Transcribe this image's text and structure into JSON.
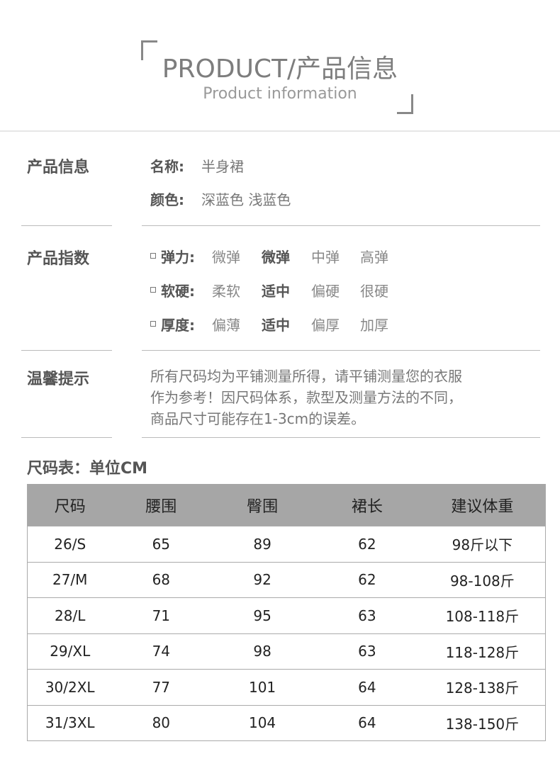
{
  "header": {
    "title": "PRODUCT/产品信息",
    "subtitle": "Product information"
  },
  "info": {
    "section": "产品信息",
    "name_label": "名称:",
    "name_value": "半身裙",
    "color_label": "颜色:",
    "color_value": "深蓝色 浅蓝色"
  },
  "index": {
    "section": "产品指数",
    "rows": [
      {
        "label": "弹力:",
        "options": [
          "微弹",
          "微弹",
          "中弹",
          "高弹"
        ],
        "selected": 1
      },
      {
        "label": "软硬:",
        "options": [
          "柔软",
          "适中",
          "偏硬",
          "很硬"
        ],
        "selected": 1
      },
      {
        "label": "厚度:",
        "options": [
          "偏薄",
          "适中",
          "偏厚",
          "加厚"
        ],
        "selected": 1
      }
    ]
  },
  "tips": {
    "section": "温馨提示",
    "lines": [
      "所有尺码均为平铺测量所得，请平铺测量您的衣服",
      "作为参考！因尺码体系，款型及测量方法的不同，",
      "商品尺寸可能存在1-3cm的误差。"
    ]
  },
  "size_table": {
    "title": "尺码表：单位CM",
    "headers": [
      "尺码",
      "腰围",
      "臀围",
      "裙长",
      "建议体重"
    ],
    "rows": [
      [
        "26/S",
        "65",
        "89",
        "62",
        "98斤以下"
      ],
      [
        "27/M",
        "68",
        "92",
        "62",
        "98-108斤"
      ],
      [
        "28/L",
        "71",
        "95",
        "63",
        "108-118斤"
      ],
      [
        "29/XL",
        "74",
        "98",
        "63",
        "118-128斤"
      ],
      [
        "30/2XL",
        "77",
        "101",
        "64",
        "128-138斤"
      ],
      [
        "31/3XL",
        "80",
        "104",
        "64",
        "138-150斤"
      ]
    ]
  },
  "colors": {
    "header_bg": "#a6a6a6",
    "text": "#555555"
  }
}
